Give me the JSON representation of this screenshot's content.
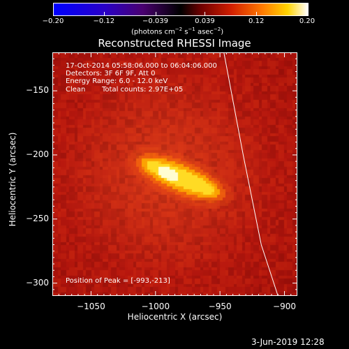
{
  "chart_data": {
    "type": "heatmap",
    "title": "Reconstructed RHESSI Image",
    "xlabel": "Heliocentric X (arcsec)",
    "ylabel": "Heliocentric Y (arcsec)",
    "xlim": [
      -1080,
      -890
    ],
    "ylim": [
      -310,
      -120
    ],
    "x_ticks": [
      -1050,
      -1000,
      -950,
      -900
    ],
    "y_ticks": [
      -150,
      -200,
      -250,
      -300
    ],
    "x_tick_labels": [
      "−1050",
      "−1000",
      "−950",
      "−900"
    ],
    "y_tick_labels": [
      "−150",
      "−200",
      "−250",
      "−300"
    ],
    "colorbar": {
      "min": -0.2,
      "max": 0.2,
      "tick_labels": [
        "−0.20",
        "−0.12",
        "−0.039",
        "0.039",
        "0.12",
        "0.20"
      ],
      "tick_values": [
        -0.2,
        -0.12,
        -0.039,
        0.039,
        0.12,
        0.2
      ],
      "label": "(photons cm",
      "label_sup1": "−2",
      "label_mid": " s",
      "label_sup2": "−1",
      "label_mid2": " asec",
      "label_sup3": "−2",
      "label_end": ")"
    },
    "source": {
      "peak_x": -993,
      "peak_y": -213,
      "x_start": -1003,
      "y_start": -208,
      "x_end": -960,
      "y_end": -226
    },
    "limb_points": [
      [
        -947,
        -120
      ],
      [
        -932,
        -200
      ],
      [
        -918,
        -270
      ],
      [
        -905,
        -310
      ]
    ],
    "annotations": {
      "time_range": "17-Oct-2014 05:58:06.000 to 06:04:06.000",
      "detectors": "Detectors: 3F 6F 9F, Att 0",
      "energy": "Energy Range: 6.0 - 12.0 keV",
      "clean": "Clean",
      "counts": "Total counts: 2.97E+05",
      "peak": "Position of Peak = [-993,-213]"
    }
  },
  "footer": {
    "timestamp": "3-Jun-2019 12:28"
  },
  "colors": {
    "background": "#000000",
    "field": "#b0140f",
    "limb": "#ffffff"
  }
}
